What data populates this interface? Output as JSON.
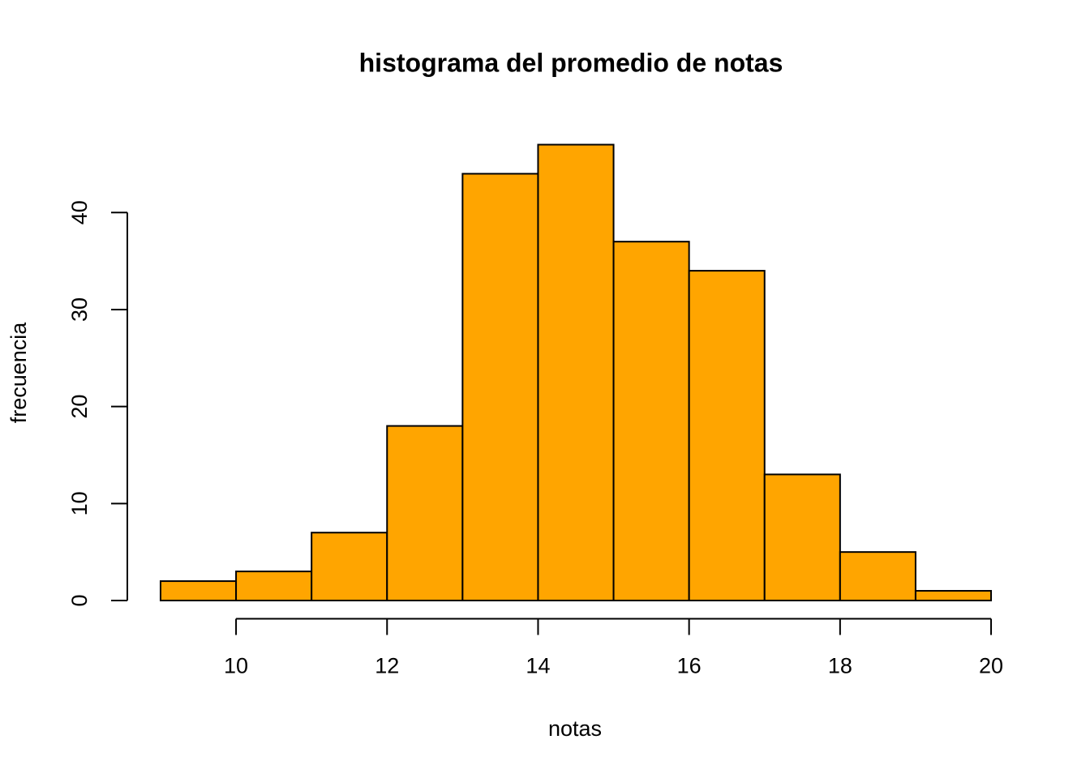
{
  "chart_data": {
    "type": "histogram",
    "title": "histograma del promedio de notas",
    "x_label": "notas",
    "y_label": "frecuencia",
    "bins": [
      9,
      10,
      11,
      12,
      13,
      14,
      15,
      16,
      17,
      18,
      19,
      20
    ],
    "values": [
      2,
      3,
      7,
      18,
      44,
      47,
      37,
      34,
      13,
      5,
      1
    ],
    "color": "#ffa500",
    "xlim": [
      8.56,
      20.44
    ],
    "ylim": [
      -1.88,
      48.88
    ],
    "xticks": [
      10,
      12,
      14,
      16,
      18,
      20
    ],
    "yticks": [
      0,
      10,
      20,
      30,
      40
    ]
  }
}
